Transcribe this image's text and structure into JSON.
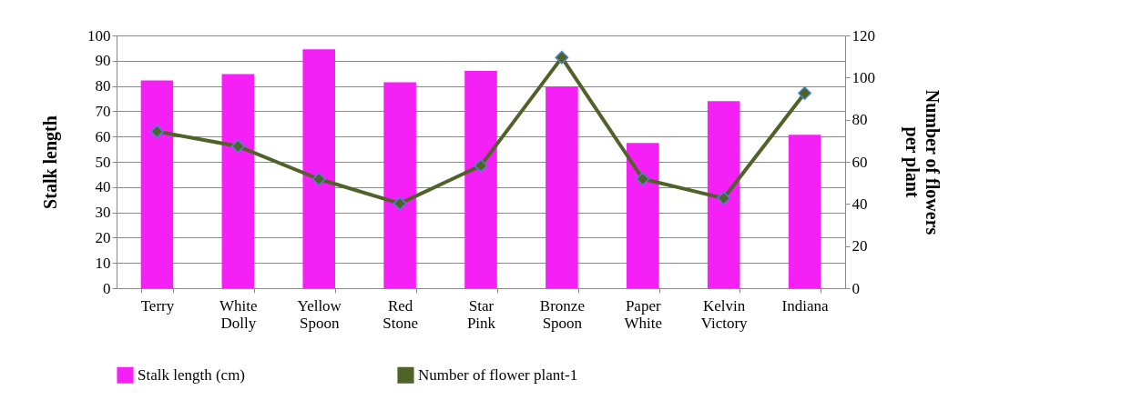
{
  "chart_data": {
    "type": "bar",
    "categories": [
      "Terry",
      "White Dolly",
      "Yellow Spoon",
      "Red Stone",
      "Star Pink",
      "Bronze Spoon",
      "Paper White",
      "Kelvin Victory",
      "Indiana"
    ],
    "series": [
      {
        "name": "Stalk length (cm)",
        "color": "#f520f5",
        "values": [
          82.2,
          84.7,
          94.5,
          81.5,
          86,
          79.8,
          57.5,
          74,
          60.7
        ]
      },
      {
        "name": "Number of flower plant-1",
        "type": "line",
        "axis": "y2",
        "color": "#4f6228",
        "values": [
          74.4,
          67.4,
          51.8,
          40.2,
          58.2,
          109.5,
          51.9,
          42.7,
          92.6
        ]
      }
    ],
    "ylabel": "Stalk length",
    "y2label": "Number of flowers per plant",
    "ylim": [
      0,
      100
    ],
    "yticks": [
      0,
      10,
      20,
      30,
      40,
      50,
      60,
      70,
      80,
      90,
      100
    ],
    "y2lim": [
      0,
      120
    ],
    "y2ticks": [
      0,
      20,
      40,
      60,
      80,
      100,
      120
    ],
    "grid": "y",
    "legend": "bottom",
    "marker": "diamond",
    "line_style": "solid"
  }
}
